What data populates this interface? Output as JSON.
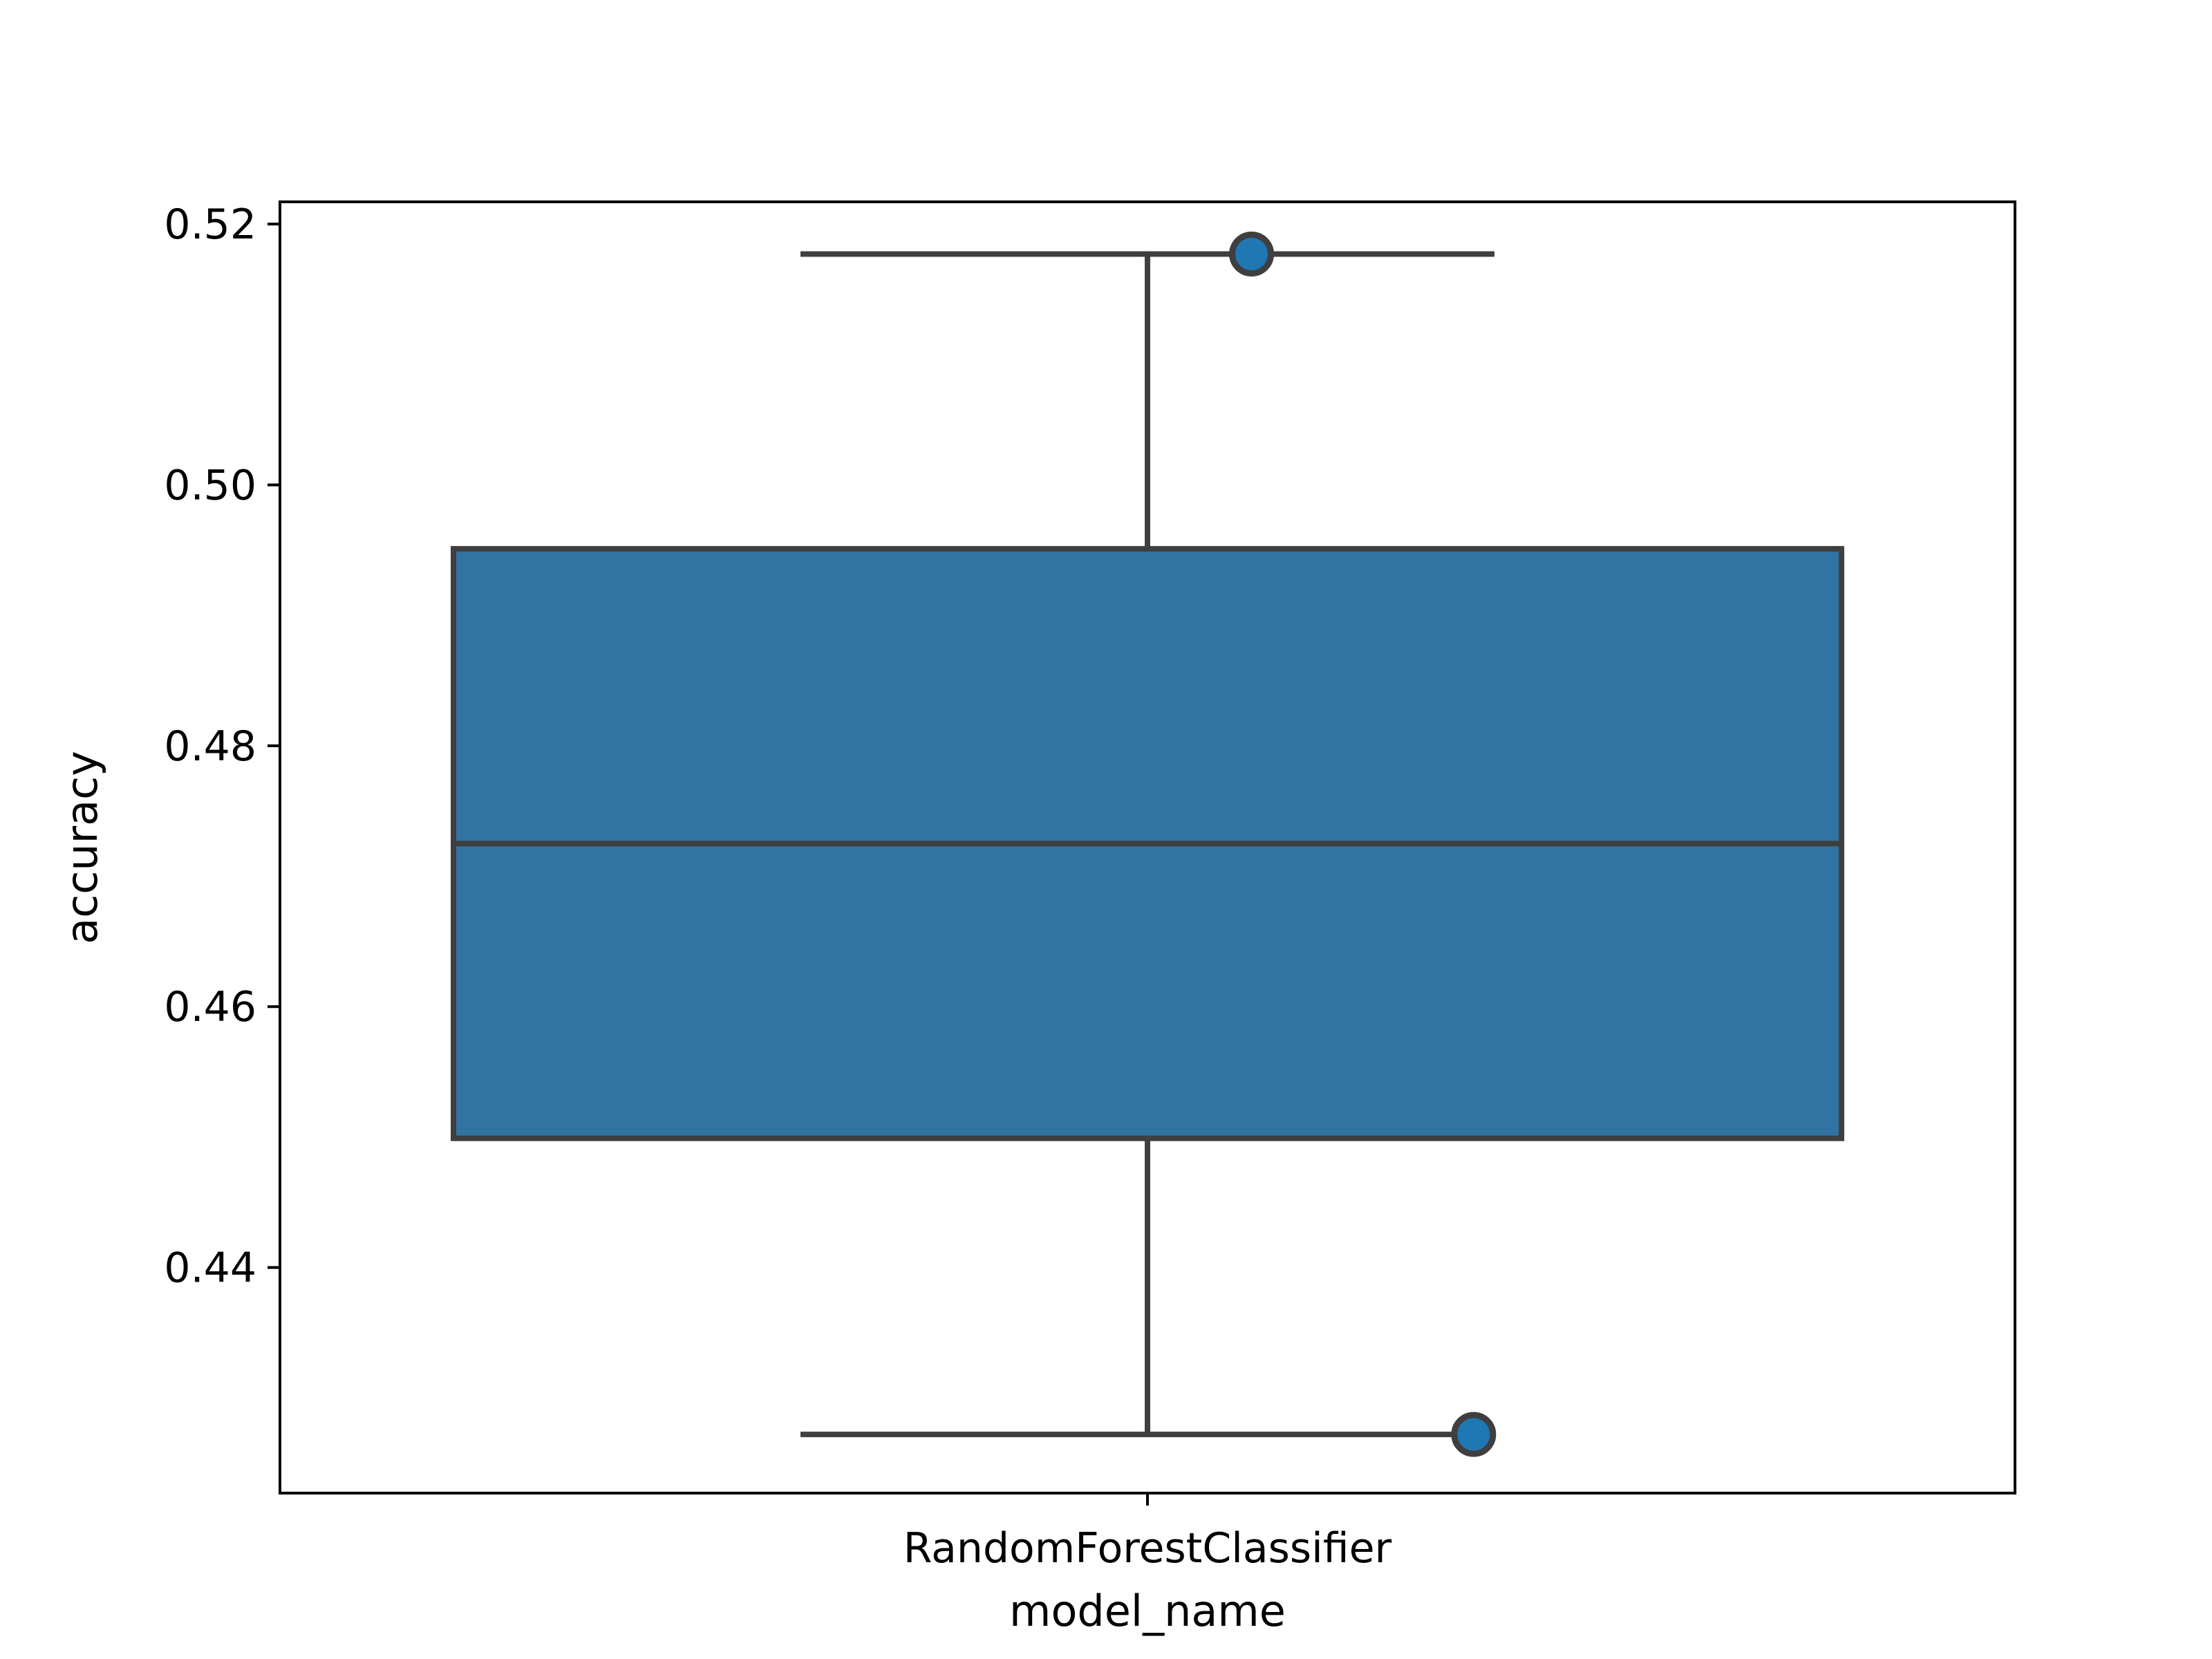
{
  "chart_data": {
    "type": "box",
    "title": "",
    "xlabel": "model_name",
    "ylabel": "accuracy",
    "ylim": [
      0.4227,
      0.5217
    ],
    "yticks": [
      0.44,
      0.46,
      0.48,
      0.5,
      0.52
    ],
    "ytick_labels": [
      "0.44",
      "0.46",
      "0.48",
      "0.50",
      "0.52"
    ],
    "categories": [
      "RandomForestClassifier"
    ],
    "boxes": [
      {
        "category": "RandomForestClassifier",
        "whisker_low": 0.4272,
        "q1": 0.4499,
        "median": 0.4725,
        "q3": 0.4951,
        "whisker_high": 0.5177,
        "points": [
          {
            "offset": 0.15,
            "value": 0.5177
          },
          {
            "offset": 0.47,
            "value": 0.4272
          }
        ]
      }
    ],
    "grid": false,
    "colors": {
      "box_fill": "#3274a1",
      "line": "#3f3f3f",
      "point_fill": "#1f77b4",
      "axes": "#000000"
    }
  }
}
